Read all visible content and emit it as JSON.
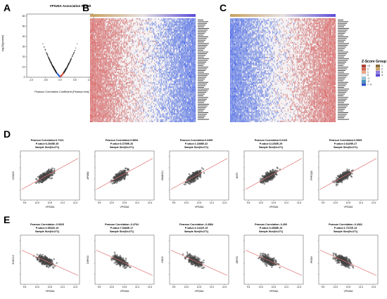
{
  "panels": {
    "a": "A",
    "b": "B",
    "c": "C",
    "d": "D",
    "e": "E"
  },
  "volcano": {
    "title": "VPS26A Association Result",
    "xlabel": "Pearson Correlation Coefficient (Pearson test)",
    "ylabel": "-log10(pvalue)",
    "xticks": [
      "-1.0",
      "-0.5",
      "0.0",
      "0.5",
      "1.0"
    ],
    "yticks": [
      "0",
      "10",
      "20",
      "30",
      "40",
      "50",
      "60"
    ]
  },
  "heatmap_legend": {
    "zscore_title": "Z-Score",
    "group_title": "Group",
    "zscore_labels": [
      ">3",
      "2",
      "1",
      "0",
      "-1",
      "-2",
      "< -3"
    ],
    "group_labels": [
      "1",
      "2",
      "3",
      "4"
    ]
  },
  "colors": {
    "red": "#d6604d",
    "blue": "#2c52c8",
    "gold": "#c8a060",
    "purple": "#5a4bd6"
  },
  "scatter_x_label": "VPS26A",
  "scatter_xticks": [
    "9.5",
    "10.0",
    "10.5",
    "11.0",
    "11.5"
  ],
  "row_d": [
    {
      "gene": "CCND2",
      "r": "Pearson Correlation:0.7224",
      "p": "P-value:6.2545E-45",
      "n": "Sample Size(N=271)"
    },
    {
      "gene": "APOB2",
      "r": "Pearson Correlation:0.5854",
      "p": "P-value:6.3759E-26",
      "n": "Sample Size(N=271)"
    },
    {
      "gene": "SMADC1",
      "r": "Pearson Correlation:0.6399",
      "p": "P-value:1.1898E-32",
      "n": "Sample Size(N=271)"
    },
    {
      "gene": "ELP2",
      "r": "Pearson Correlation:0.6103",
      "p": "P-value:3.1453E-29",
      "n": "Sample Size(N=271)"
    },
    {
      "gene": "PPP2CB",
      "r": "Pearson Correlation:0.5965",
      "p": "P-value:2.6425E-27",
      "n": "Sample Size(N=271)"
    }
  ],
  "row_e": [
    {
      "gene": "ZCHC12",
      "r": "Pearson Correlation:-0.5025",
      "p": "P-value:2.5531E-19",
      "n": "Sample Size(N=271)"
    },
    {
      "gene": "DHRS3",
      "r": "Pearson Correlation:-0.4764",
      "p": "P-value:7.9483E-17",
      "n": "Sample Size(N=271)"
    },
    {
      "gene": "HSD3",
      "r": "Pearson Correlation:-0.4584",
      "p": "P-value:2.1421E-15",
      "n": "Sample Size(N=271)"
    },
    {
      "gene": "ARSTL",
      "r": "Pearson Correlation:-0.453",
      "p": "P-value:3.3558E-15",
      "n": "Sample Size(N=271)"
    },
    {
      "gene": "PRGH",
      "r": "Pearson Correlation:-0.4362",
      "p": "P-value:1.7372E-13",
      "n": "Sample Size(N=271)"
    }
  ]
}
